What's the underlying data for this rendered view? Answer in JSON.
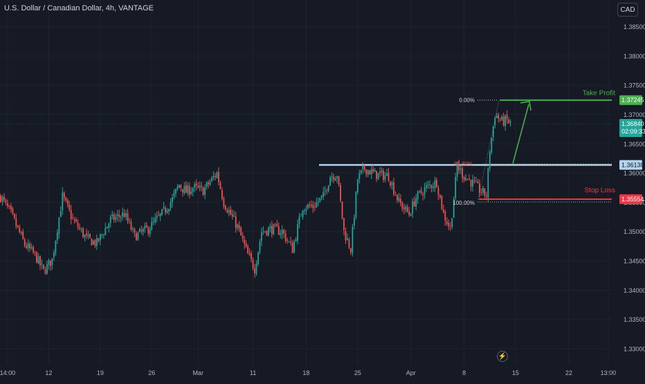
{
  "header": {
    "title": "U.S. Dollar / Canadian Dollar, 4h, VANTAGE",
    "currency": "CAD"
  },
  "colors": {
    "background": "#161a25",
    "up": "#26a69a",
    "down": "#ef5350",
    "take_profit": "#4caf50",
    "stop_loss": "#f23645",
    "resistance": "#b2d4f0",
    "text": "#d1d4dc",
    "axis_text": "#b2b5be"
  },
  "chart_data": {
    "type": "candlestick",
    "ylim": [
      1.328,
      1.3905
    ],
    "y_ticks": [
      "1.38500",
      "1.38000",
      "1.37500",
      "1.37000",
      "1.36500",
      "1.36000",
      "1.35500",
      "1.35000",
      "1.34500",
      "1.34000",
      "1.33500",
      "1.33000"
    ],
    "x_ticks": [
      {
        "label": "14:00",
        "i": 4
      },
      {
        "label": "12",
        "i": 28
      },
      {
        "label": "19",
        "i": 58
      },
      {
        "label": "26",
        "i": 88
      },
      {
        "label": "Mar",
        "i": 115
      },
      {
        "label": "11",
        "i": 147
      },
      {
        "label": "18",
        "i": 178
      },
      {
        "label": "25",
        "i": 208
      },
      {
        "label": "Apr",
        "i": 239
      },
      {
        "label": "8",
        "i": 270
      },
      {
        "label": "15",
        "i": 300
      },
      {
        "label": "22",
        "i": 331
      },
      {
        "label": "13:00",
        "i": 354
      }
    ],
    "candles_path": [
      [
        0,
        1.356
      ],
      [
        6,
        1.353
      ],
      [
        14,
        1.3478
      ],
      [
        20,
        1.346
      ],
      [
        25,
        1.3432
      ],
      [
        30,
        1.3452
      ],
      [
        36,
        1.356
      ],
      [
        42,
        1.352
      ],
      [
        50,
        1.3488
      ],
      [
        56,
        1.348
      ],
      [
        64,
        1.352
      ],
      [
        72,
        1.353
      ],
      [
        78,
        1.3492
      ],
      [
        86,
        1.3505
      ],
      [
        94,
        1.353
      ],
      [
        100,
        1.3555
      ],
      [
        104,
        1.358
      ],
      [
        108,
        1.3568
      ],
      [
        112,
        1.3575
      ],
      [
        118,
        1.357
      ],
      [
        126,
        1.36
      ],
      [
        130,
        1.355
      ],
      [
        138,
        1.3508
      ],
      [
        144,
        1.346
      ],
      [
        148,
        1.3437
      ],
      [
        152,
        1.35
      ],
      [
        158,
        1.3505
      ],
      [
        164,
        1.35
      ],
      [
        170,
        1.347
      ],
      [
        176,
        1.3543
      ],
      [
        182,
        1.3543
      ],
      [
        188,
        1.356
      ],
      [
        192,
        1.3595
      ],
      [
        196,
        1.3598
      ],
      [
        200,
        1.35
      ],
      [
        204,
        1.347
      ],
      [
        208,
        1.359
      ],
      [
        212,
        1.3608
      ],
      [
        218,
        1.3598
      ],
      [
        226,
        1.3595
      ],
      [
        232,
        1.355
      ],
      [
        238,
        1.353
      ],
      [
        242,
        1.3558
      ],
      [
        248,
        1.3575
      ],
      [
        254,
        1.3585
      ],
      [
        258,
        1.353
      ],
      [
        262,
        1.3505
      ],
      [
        266,
        1.3612
      ],
      [
        270,
        1.3595
      ],
      [
        276,
        1.358
      ],
      [
        280,
        1.3568
      ],
      [
        283,
        1.3562
      ],
      [
        285,
        1.364
      ],
      [
        288,
        1.37
      ],
      [
        292,
        1.3688
      ],
      [
        295,
        1.369
      ],
      [
        297,
        1.3684
      ]
    ],
    "last_index": 297,
    "levels": {
      "take_profit": {
        "label": "Take Profit",
        "value": 1.37245,
        "value_text": "1.37245"
      },
      "resistance": {
        "value": 1.36138,
        "value_text": "1.36138"
      },
      "stop_loss": {
        "label": "Stop Loss",
        "value": 1.35554,
        "value_text": "1.35554"
      },
      "current": {
        "value": 1.3684,
        "value_text": "1.36840",
        "countdown": "02:09:33"
      }
    },
    "fib": {
      "top_label": "0.00%",
      "mid_label": "61.80%",
      "bottom_label": "100.00%"
    }
  }
}
